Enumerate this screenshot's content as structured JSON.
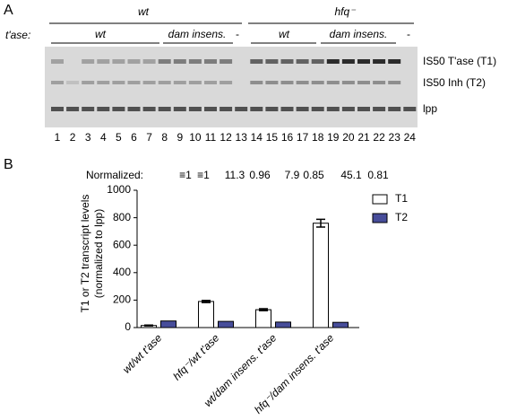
{
  "panel_a": {
    "label": "A",
    "genotype_groups": [
      "wt",
      "hfq⁻"
    ],
    "tase_label": "t'ase:",
    "tase_groups": [
      "wt",
      "dam insens.",
      "-",
      "wt",
      "dam insens.",
      "-"
    ],
    "band_labels": [
      "IS50 T'ase (T1)",
      "IS50 Inh (T2)",
      "lpp"
    ],
    "lanes": [
      1,
      2,
      3,
      4,
      5,
      6,
      7,
      8,
      9,
      10,
      11,
      12,
      13,
      14,
      15,
      16,
      17,
      18,
      19,
      20,
      21,
      22,
      23,
      24
    ]
  },
  "panel_b": {
    "label": "B",
    "normalized_label": "Normalized:",
    "normalized": [
      {
        "text": "≡1",
        "color": "#000000"
      },
      {
        "text": "≡1",
        "color": "#3d4fa8"
      },
      {
        "text": "11.3",
        "color": "#000000"
      },
      {
        "text": "0.96",
        "color": "#3d4fa8"
      },
      {
        "text": "7.9",
        "color": "#000000"
      },
      {
        "text": "0.85",
        "color": "#3d4fa8"
      },
      {
        "text": "45.1",
        "color": "#000000"
      },
      {
        "text": "0.81",
        "color": "#3d4fa8"
      }
    ]
  },
  "chart_data": {
    "type": "bar",
    "y_label": [
      "T1 or T2 transcript levels",
      "(normalized to lpp)"
    ],
    "categories": [
      "wt/wt t'ase",
      "hfq⁻/wt t'ase",
      "wt/dam insens. t'ase",
      "hfq⁻/dam insens. t'ase"
    ],
    "series": [
      {
        "name": "T1",
        "color": "#ffffff",
        "values": [
          15,
          190,
          130,
          760
        ],
        "errors": [
          3,
          8,
          7,
          28
        ]
      },
      {
        "name": "T2",
        "color": "#474d9a",
        "values": [
          48,
          45,
          40,
          38
        ]
      }
    ],
    "ylim": [
      0,
      1000
    ],
    "yticks": [
      0,
      200,
      400,
      600,
      800,
      1000
    ],
    "legend": "upper right"
  }
}
